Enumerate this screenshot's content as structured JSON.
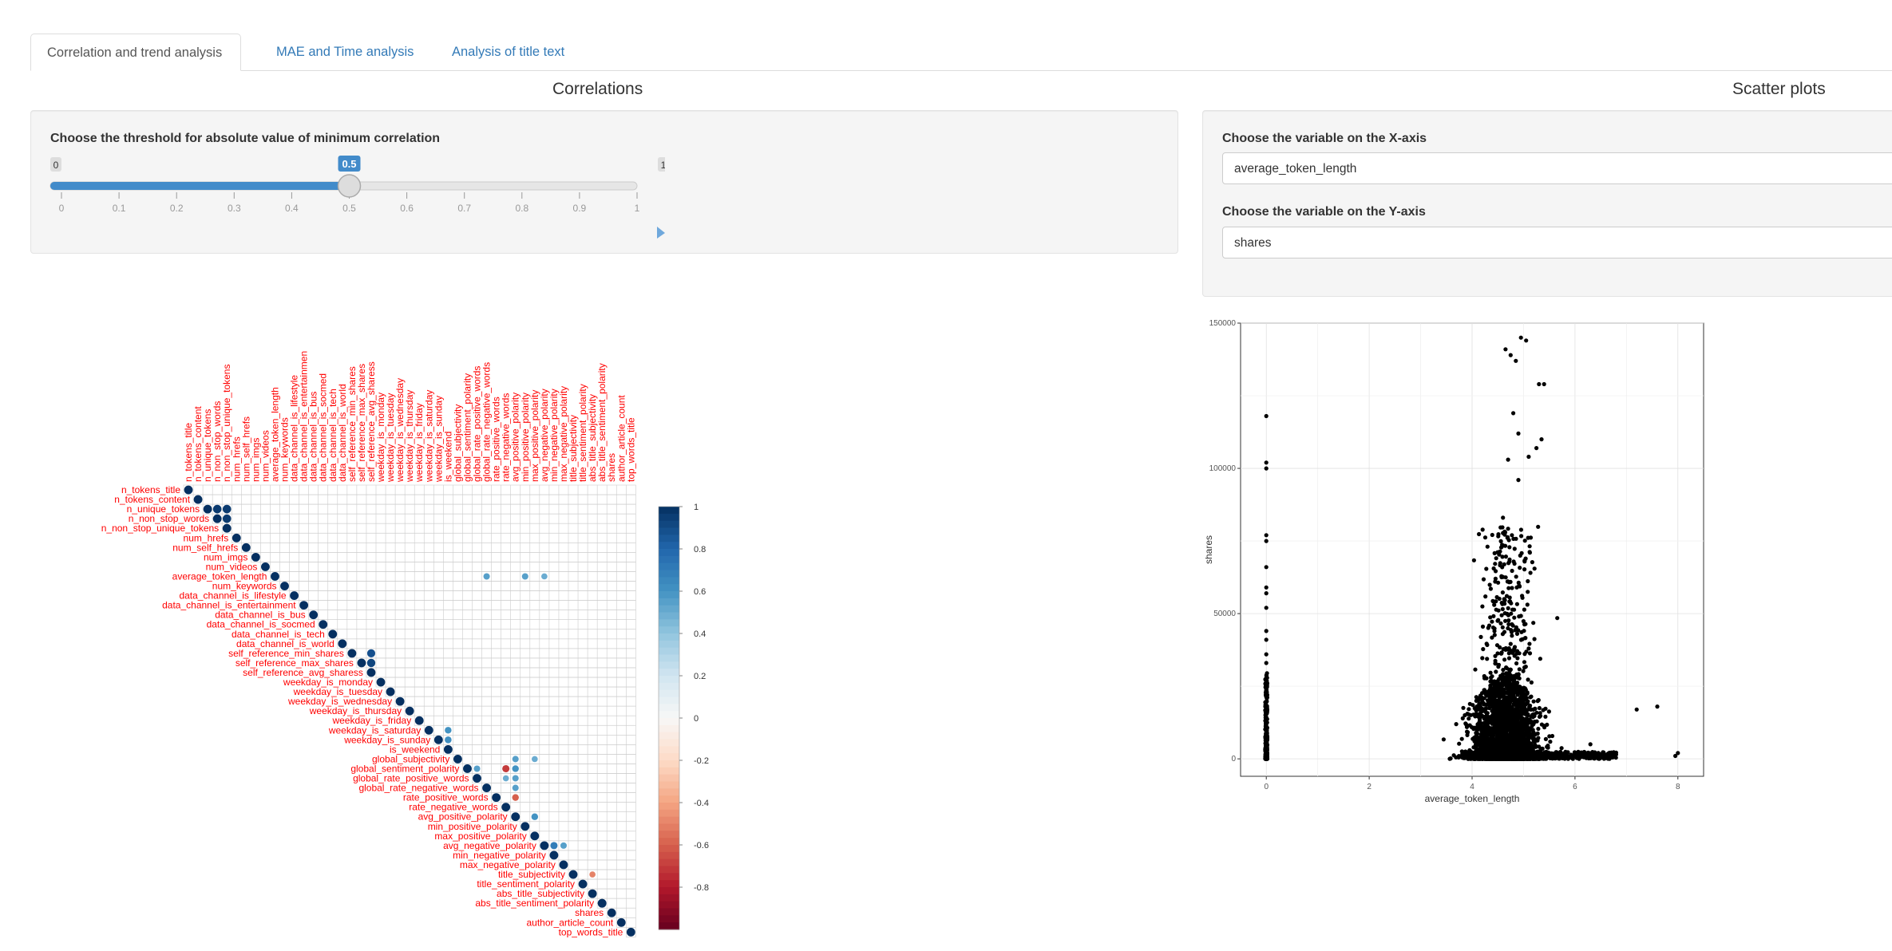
{
  "tabs": [
    {
      "label": "Correlation and trend analysis"
    },
    {
      "label": "MAE and Time analysis"
    },
    {
      "label": "Analysis of title text"
    }
  ],
  "correlations": {
    "title": "Correlations",
    "slider": {
      "label": "Choose the threshold for absolute value of minimum correlation",
      "min_label": "0",
      "max_label": "1",
      "value_label": "0.5",
      "value": 0.5,
      "ticks": [
        "0",
        "0.1",
        "0.2",
        "0.3",
        "0.4",
        "0.5",
        "0.6",
        "0.7",
        "0.8",
        "0.9",
        "1"
      ],
      "accent_color": "#428bca"
    }
  },
  "scatter": {
    "title": "Scatter plots",
    "x_label": "Choose the variable on the X-axis",
    "x_value": "average_token_length",
    "y_label": "Choose the variable on the Y-axis",
    "y_value": "shares"
  },
  "chart_data": [
    {
      "type": "heatmap",
      "variables": [
        "n_tokens_title",
        "n_tokens_content",
        "n_unique_tokens",
        "n_non_stop_words",
        "n_non_stop_unique_tokens",
        "num_hrefs",
        "num_self_hrefs",
        "num_imgs",
        "num_videos",
        "average_token_length",
        "num_keywords",
        "data_channel_is_lifestyle",
        "data_channel_is_entertainment",
        "data_channel_is_bus",
        "data_channel_is_socmed",
        "data_channel_is_tech",
        "data_channel_is_world",
        "self_reference_min_shares",
        "self_reference_max_shares",
        "self_reference_avg_sharess",
        "weekday_is_monday",
        "weekday_is_tuesday",
        "weekday_is_wednesday",
        "weekday_is_thursday",
        "weekday_is_friday",
        "weekday_is_saturday",
        "weekday_is_sunday",
        "is_weekend",
        "global_subjectivity",
        "global_sentiment_polarity",
        "global_rate_positive_words",
        "global_rate_negative_words",
        "rate_positive_words",
        "rate_negative_words",
        "avg_positive_polarity",
        "min_positive_polarity",
        "max_positive_polarity",
        "avg_negative_polarity",
        "min_negative_polarity",
        "max_negative_polarity",
        "title_subjectivity",
        "title_sentiment_polarity",
        "abs_title_subjectivity",
        "abs_title_sentiment_polarity",
        "shares",
        "author_article_count",
        "top_words_title"
      ],
      "cells": [
        [
          2,
          3,
          0.96
        ],
        [
          2,
          4,
          0.96
        ],
        [
          3,
          4,
          0.96
        ],
        [
          9,
          31,
          0.55
        ],
        [
          9,
          35,
          0.55
        ],
        [
          9,
          37,
          0.5
        ],
        [
          17,
          19,
          0.88
        ],
        [
          18,
          19,
          0.92
        ],
        [
          25,
          27,
          0.6
        ],
        [
          26,
          27,
          0.62
        ],
        [
          28,
          34,
          0.55
        ],
        [
          28,
          36,
          0.5
        ],
        [
          29,
          30,
          0.55
        ],
        [
          29,
          33,
          -0.7
        ],
        [
          29,
          34,
          0.6
        ],
        [
          30,
          33,
          0.5
        ],
        [
          30,
          34,
          0.55
        ],
        [
          31,
          34,
          0.55
        ],
        [
          32,
          34,
          -0.6
        ],
        [
          34,
          36,
          0.6
        ],
        [
          37,
          38,
          0.7
        ],
        [
          37,
          39,
          0.55
        ],
        [
          40,
          42,
          -0.5
        ],
        [
          43,
          43,
          1
        ]
      ],
      "legend_ticks": [
        "1",
        "0.8",
        "0.6",
        "0.4",
        "0.2",
        "0",
        "-0.2",
        "-0.4",
        "-0.6",
        "-0.8"
      ],
      "colors": {
        "positive": "#053061",
        "negative": "#67001f",
        "label": "#ff0000"
      }
    },
    {
      "type": "scatter",
      "xlabel": "average_token_length",
      "ylabel": "shares",
      "xlim": [
        -0.5,
        8.5
      ],
      "ylim": [
        -6000,
        150000
      ],
      "x_ticks": [
        "0",
        "2",
        "4",
        "6",
        "8"
      ],
      "y_ticks": [
        "0",
        "50000",
        "100000",
        "150000"
      ],
      "grid": true,
      "outliers": [
        [
          0,
          118000
        ],
        [
          0,
          102000
        ],
        [
          0,
          100000
        ],
        [
          0,
          77000
        ],
        [
          0,
          75000
        ],
        [
          0,
          66000
        ],
        [
          0,
          59000
        ],
        [
          0,
          57000
        ],
        [
          0,
          52000
        ],
        [
          0,
          44000
        ],
        [
          0,
          41000
        ],
        [
          0,
          36000
        ],
        [
          0,
          33000
        ],
        [
          4.65,
          141000
        ],
        [
          4.75,
          139000
        ],
        [
          4.95,
          145000
        ],
        [
          5.05,
          144000
        ],
        [
          4.85,
          137000
        ],
        [
          5.3,
          129000
        ],
        [
          5.4,
          129000
        ],
        [
          4.8,
          119000
        ],
        [
          5.25,
          107000
        ],
        [
          5.35,
          110000
        ],
        [
          4.9,
          112000
        ],
        [
          4.7,
          103000
        ],
        [
          4.9,
          96000
        ],
        [
          4.6,
          83000
        ],
        [
          5.1,
          104000
        ],
        [
          7.2,
          17000
        ],
        [
          7.6,
          18000
        ],
        [
          8.0,
          2000
        ],
        [
          7.95,
          1000
        ],
        [
          6.8,
          1500
        ],
        [
          6.3,
          5000
        ]
      ],
      "point_color": "#000000"
    }
  ]
}
